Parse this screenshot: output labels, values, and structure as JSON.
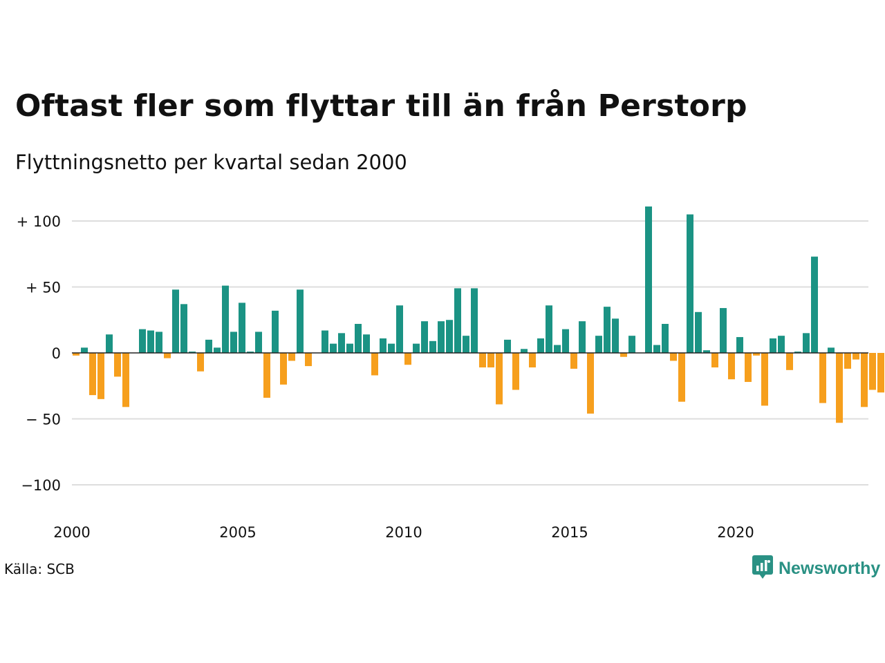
{
  "title": "Oftast fler som flyttar till än från Perstorp",
  "subtitle": "Flyttningsnetto per kvartal sedan 2000",
  "source": "Källa: SCB",
  "brand": {
    "name": "Newsworthy",
    "icon": "chart-bubble-icon"
  },
  "colors": {
    "positive": "#1b9384",
    "negative": "#f69f1d",
    "grid": "#dddddd",
    "zero_line": "#222222",
    "brand": "#2a9184"
  },
  "chart_data": {
    "type": "bar",
    "title": "Oftast fler som flyttar till än från Perstorp",
    "subtitle": "Flyttningsnetto per kvartal sedan 2000",
    "xlabel": "",
    "ylabel": "",
    "xlim": [
      2000,
      2024
    ],
    "ylim": [
      -125,
      115
    ],
    "x_ticks": [
      2000,
      2005,
      2010,
      2015,
      2020
    ],
    "x_tick_labels": [
      "2000",
      "2005",
      "2010",
      "2015",
      "2020"
    ],
    "y_ticks": [
      100,
      50,
      0,
      -50,
      -100
    ],
    "y_tick_labels": [
      "+ 100",
      "+  50",
      "0",
      "− 50",
      "−100"
    ],
    "grid": true,
    "legend": "none",
    "categories": [
      "2000K1",
      "2000K2",
      "2000K3",
      "2000K4",
      "2001K1",
      "2001K2",
      "2001K3",
      "2001K4",
      "2002K1",
      "2002K2",
      "2002K3",
      "2002K4",
      "2003K1",
      "2003K2",
      "2003K3",
      "2003K4",
      "2004K1",
      "2004K2",
      "2004K3",
      "2004K4",
      "2005K1",
      "2005K2",
      "2005K3",
      "2005K4",
      "2006K1",
      "2006K2",
      "2006K3",
      "2006K4",
      "2007K1",
      "2007K2",
      "2007K3",
      "2007K4",
      "2008K1",
      "2008K2",
      "2008K3",
      "2008K4",
      "2009K1",
      "2009K2",
      "2009K3",
      "2009K4",
      "2010K1",
      "2010K2",
      "2010K3",
      "2010K4",
      "2011K1",
      "2011K2",
      "2011K3",
      "2011K4",
      "2012K1",
      "2012K2",
      "2012K3",
      "2012K4",
      "2013K1",
      "2013K2",
      "2013K3",
      "2013K4",
      "2014K1",
      "2014K2",
      "2014K3",
      "2014K4",
      "2015K1",
      "2015K2",
      "2015K3",
      "2015K4",
      "2016K1",
      "2016K2",
      "2016K3",
      "2016K4",
      "2017K1",
      "2017K2",
      "2017K3",
      "2017K4",
      "2018K1",
      "2018K2",
      "2018K3",
      "2018K4",
      "2019K1",
      "2019K2",
      "2019K3",
      "2019K4",
      "2020K1",
      "2020K2",
      "2020K3",
      "2020K4",
      "2021K1",
      "2021K2",
      "2021K3",
      "2021K4",
      "2022K1",
      "2022K2",
      "2022K3",
      "2022K4",
      "2023K1",
      "2023K2",
      "2023K3",
      "2023K4"
    ],
    "values": [
      -2,
      4,
      -32,
      -35,
      14,
      -18,
      -41,
      0,
      18,
      17,
      16,
      -4,
      48,
      37,
      1,
      -14,
      10,
      4,
      51,
      16,
      38,
      1,
      16,
      -34,
      32,
      -24,
      -6,
      48,
      -10,
      0,
      17,
      7,
      15,
      7,
      22,
      14,
      -17,
      11,
      7,
      36,
      -9,
      7,
      24,
      9,
      24,
      25,
      49,
      13,
      49,
      -11,
      -11,
      -39,
      10,
      -28,
      3,
      -11,
      11,
      36,
      6,
      18,
      -12,
      24,
      -46,
      13,
      35,
      26,
      -3,
      13,
      0,
      111,
      6,
      22,
      -6,
      -37,
      105,
      31,
      2,
      -11,
      34,
      -20,
      12,
      -22,
      -2,
      -40,
      11,
      13,
      -13,
      1,
      15,
      73,
      -38,
      4,
      -53,
      -12,
      -5,
      -41
    ],
    "extra_values_tail": [
      -28,
      -30
    ]
  }
}
